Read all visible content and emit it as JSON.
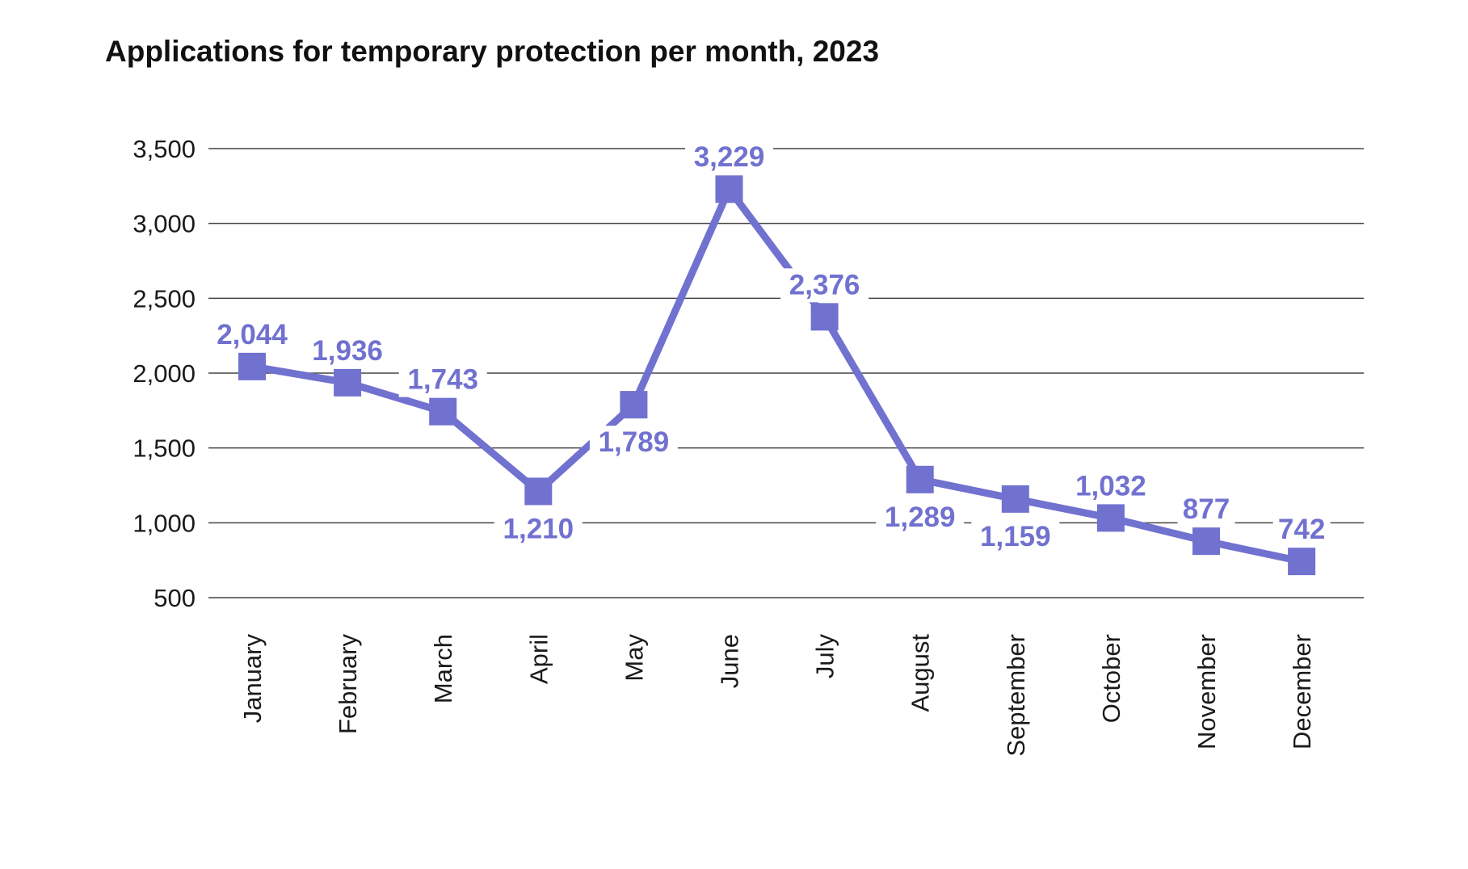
{
  "chart_data": {
    "type": "line",
    "title": "Applications for temporary protection per month, 2023",
    "xlabel": "",
    "ylabel": "",
    "categories": [
      "January",
      "February",
      "March",
      "April",
      "May",
      "June",
      "July",
      "August",
      "September",
      "October",
      "November",
      "December"
    ],
    "series": [
      {
        "values": [
          2044,
          1936,
          1743,
          1210,
          1789,
          3229,
          2376,
          1289,
          1159,
          1032,
          877,
          742
        ],
        "data_labels": [
          "2,044",
          "1,936",
          "1,743",
          "1,210",
          "1,789",
          "3,229",
          "2,376",
          "1,289",
          "1,159",
          "1,032",
          "877",
          "742"
        ],
        "color": "#7171D0",
        "marker": "square"
      }
    ],
    "ylim": [
      500,
      3500
    ],
    "yticks": [
      500,
      1000,
      1500,
      2000,
      2500,
      3000,
      3500
    ],
    "ytick_labels": [
      "500",
      "1,000",
      "1,500",
      "2,000",
      "2,500",
      "3,000",
      "3,500"
    ],
    "grid": true,
    "legend": "none",
    "label_positions": [
      "above",
      "above",
      "above",
      "below",
      "below",
      "above",
      "above",
      "below",
      "below",
      "above",
      "above",
      "above"
    ]
  }
}
